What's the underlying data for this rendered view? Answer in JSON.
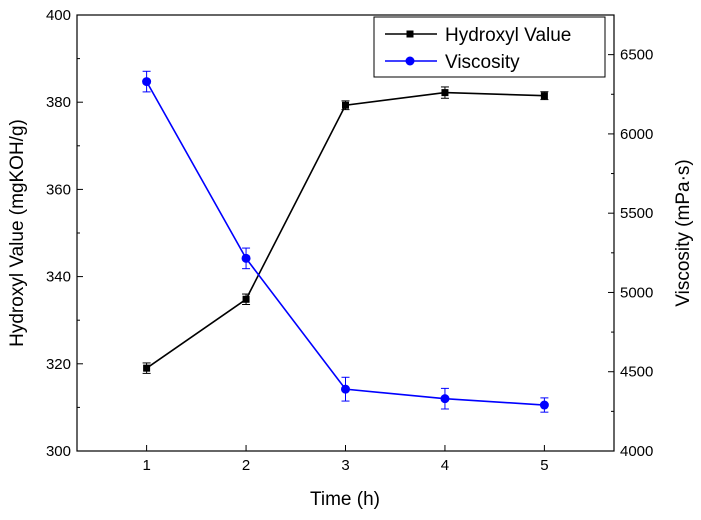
{
  "chart_data": {
    "type": "line",
    "xlabel": "Time (h)",
    "ylabel_left": "Hydroxyl Value (mgKOH/g)",
    "ylabel_right": "Viscosity (mPa·s)",
    "x": [
      1,
      2,
      3,
      4,
      5
    ],
    "xlim": [
      0.3,
      5.7
    ],
    "xticks": [
      "1",
      "2",
      "3",
      "4",
      "5"
    ],
    "ylim_left": [
      300,
      400
    ],
    "yticks_left": [
      "300",
      "320",
      "340",
      "360",
      "380",
      "400"
    ],
    "ylim_right": [
      4000,
      6750
    ],
    "yticks_right": [
      "4000",
      "4500",
      "5000",
      "5500",
      "6000",
      "6500"
    ],
    "legend_position": "top-right",
    "grid": false,
    "series": [
      {
        "name": "Hydroxyl Value",
        "axis": "left",
        "color": "#000000",
        "marker": "square",
        "values": [
          319.0,
          334.8,
          379.3,
          382.2,
          381.5
        ],
        "errors": [
          1.2,
          1.2,
          1.0,
          1.3,
          0.9
        ]
      },
      {
        "name": "Viscosity",
        "axis": "right",
        "color": "#0000ff",
        "marker": "circle",
        "values": [
          6330,
          5215,
          4390,
          4330,
          4290
        ],
        "errors": [
          65,
          65,
          75,
          65,
          45
        ]
      }
    ]
  }
}
